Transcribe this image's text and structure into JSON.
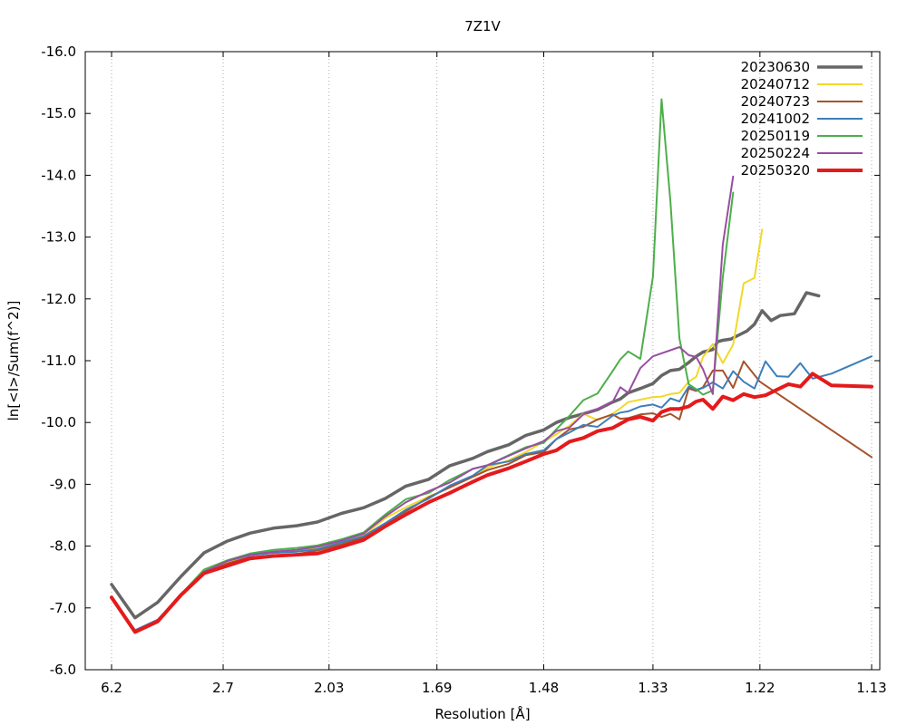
{
  "chart_data": {
    "type": "line",
    "title": "7Z1V",
    "xlabel": "Resolution [Å]",
    "ylabel": "ln[<I>/Sum(f^2)]",
    "x_scale": "inverse-square (1/d^2)",
    "xlim": [
      6.2,
      1.13
    ],
    "ylim": [
      -16.0,
      -6.0
    ],
    "x_ticks": [
      "6.2",
      "2.7",
      "2.03",
      "1.69",
      "1.48",
      "1.33",
      "1.22",
      "1.13"
    ],
    "y_ticks": [
      "-6.0",
      "-7.0",
      "-8.0",
      "-9.0",
      "-10.0",
      "-11.0",
      "-12.0",
      "-13.0",
      "-14.0",
      "-15.0",
      "-16.0"
    ],
    "grid": true,
    "legend": "top-right",
    "series": [
      {
        "name": "20230630",
        "color": "#666666",
        "width": 3.5,
        "x": [
          6.2,
          4.5,
          3.73,
          3.24,
          2.91,
          2.66,
          2.47,
          2.31,
          2.18,
          2.08,
          1.98,
          1.9,
          1.83,
          1.77,
          1.71,
          1.66,
          1.61,
          1.58,
          1.54,
          1.51,
          1.48,
          1.46,
          1.44,
          1.42,
          1.4,
          1.38,
          1.37,
          1.36,
          1.345,
          1.33,
          1.32,
          1.31,
          1.3,
          1.29,
          1.282,
          1.275,
          1.265,
          1.26,
          1.255,
          1.247,
          1.24,
          1.232,
          1.225,
          1.218,
          1.21,
          1.202,
          1.19,
          1.18,
          1.17
        ],
        "y": [
          -7.38,
          -6.84,
          -7.09,
          -7.51,
          -7.89,
          -8.08,
          -8.21,
          -8.29,
          -8.33,
          -8.39,
          -8.53,
          -8.62,
          -8.77,
          -8.97,
          -9.08,
          -9.3,
          -9.42,
          -9.53,
          -9.64,
          -9.79,
          -9.88,
          -10.0,
          -10.08,
          -10.14,
          -10.21,
          -10.33,
          -10.38,
          -10.48,
          -10.55,
          -10.63,
          -10.76,
          -10.84,
          -10.86,
          -10.97,
          -11.07,
          -11.14,
          -11.18,
          -11.31,
          -11.33,
          -11.35,
          -11.41,
          -11.48,
          -11.59,
          -11.81,
          -11.65,
          -11.73,
          -11.76,
          -12.1,
          -12.05
        ]
      },
      {
        "name": "20240712",
        "color": "#f2d82a",
        "width": 2,
        "x": [
          6.2,
          4.5,
          3.73,
          3.24,
          2.91,
          2.66,
          2.47,
          2.31,
          2.18,
          2.08,
          1.98,
          1.9,
          1.83,
          1.77,
          1.71,
          1.66,
          1.61,
          1.58,
          1.54,
          1.51,
          1.48,
          1.46,
          1.44,
          1.42,
          1.4,
          1.38,
          1.37,
          1.36,
          1.345,
          1.33,
          1.32,
          1.31,
          1.3,
          1.29,
          1.282,
          1.275,
          1.265,
          1.255,
          1.245,
          1.235,
          1.225,
          1.218
        ],
        "y": [
          -7.17,
          -6.62,
          -6.81,
          -7.2,
          -7.58,
          -7.73,
          -7.86,
          -7.9,
          -7.91,
          -7.97,
          -8.07,
          -8.17,
          -8.45,
          -8.63,
          -8.8,
          -8.95,
          -9.13,
          -9.27,
          -9.39,
          -9.52,
          -9.69,
          -9.81,
          -9.95,
          -10.14,
          -10.04,
          -10.14,
          -10.23,
          -10.33,
          -10.37,
          -10.41,
          -10.42,
          -10.46,
          -10.48,
          -10.66,
          -10.74,
          -11.06,
          -11.27,
          -10.96,
          -11.26,
          -12.25,
          -12.34,
          -13.12
        ]
      },
      {
        "name": "20240723",
        "color": "#a6522b",
        "width": 2,
        "x": [
          6.2,
          4.5,
          3.73,
          3.24,
          2.91,
          2.66,
          2.47,
          2.31,
          2.18,
          2.08,
          1.98,
          1.9,
          1.83,
          1.77,
          1.71,
          1.66,
          1.61,
          1.58,
          1.54,
          1.51,
          1.48,
          1.46,
          1.44,
          1.42,
          1.4,
          1.38,
          1.37,
          1.36,
          1.345,
          1.33,
          1.32,
          1.31,
          1.3,
          1.29,
          1.282,
          1.275,
          1.265,
          1.255,
          1.245,
          1.235,
          1.22,
          1.13
        ],
        "y": [
          -7.18,
          -6.61,
          -6.79,
          -7.19,
          -7.56,
          -7.72,
          -7.82,
          -7.85,
          -7.87,
          -7.93,
          -8.03,
          -8.14,
          -8.36,
          -8.56,
          -8.79,
          -8.95,
          -9.12,
          -9.23,
          -9.33,
          -9.47,
          -9.52,
          -9.73,
          -9.89,
          -9.93,
          -10.05,
          -10.13,
          -10.06,
          -10.07,
          -10.13,
          -10.15,
          -10.09,
          -10.14,
          -10.05,
          -10.55,
          -10.51,
          -10.57,
          -10.84,
          -10.84,
          -10.56,
          -10.99,
          -10.66,
          -9.44
        ]
      },
      {
        "name": "20241002",
        "color": "#3c7fba",
        "width": 2,
        "x": [
          6.2,
          4.5,
          3.73,
          3.24,
          2.91,
          2.66,
          2.47,
          2.31,
          2.18,
          2.08,
          1.98,
          1.9,
          1.83,
          1.77,
          1.71,
          1.66,
          1.61,
          1.58,
          1.54,
          1.51,
          1.48,
          1.46,
          1.44,
          1.42,
          1.4,
          1.38,
          1.37,
          1.36,
          1.345,
          1.33,
          1.32,
          1.31,
          1.3,
          1.29,
          1.282,
          1.275,
          1.265,
          1.255,
          1.245,
          1.235,
          1.225,
          1.215,
          1.205,
          1.195,
          1.185,
          1.175,
          1.16,
          1.13
        ],
        "y": [
          -7.18,
          -6.64,
          -6.81,
          -7.21,
          -7.59,
          -7.76,
          -7.85,
          -7.89,
          -7.91,
          -7.95,
          -8.06,
          -8.16,
          -8.37,
          -8.59,
          -8.77,
          -8.98,
          -9.14,
          -9.31,
          -9.37,
          -9.49,
          -9.55,
          -9.73,
          -9.84,
          -9.96,
          -9.93,
          -10.11,
          -10.16,
          -10.18,
          -10.26,
          -10.29,
          -10.24,
          -10.39,
          -10.34,
          -10.58,
          -10.53,
          -10.56,
          -10.65,
          -10.55,
          -10.83,
          -10.66,
          -10.55,
          -10.99,
          -10.75,
          -10.74,
          -10.96,
          -10.71,
          -10.79,
          -11.07
        ]
      },
      {
        "name": "20250119",
        "color": "#4daf4a",
        "width": 2,
        "x": [
          6.2,
          4.5,
          3.73,
          3.24,
          2.91,
          2.66,
          2.47,
          2.31,
          2.18,
          2.08,
          1.98,
          1.9,
          1.83,
          1.77,
          1.71,
          1.66,
          1.61,
          1.58,
          1.54,
          1.51,
          1.48,
          1.46,
          1.44,
          1.42,
          1.4,
          1.38,
          1.37,
          1.36,
          1.345,
          1.33,
          1.32,
          1.31,
          1.3,
          1.29,
          1.282,
          1.275,
          1.265,
          1.255,
          1.245
        ],
        "y": [
          -7.18,
          -6.61,
          -6.8,
          -7.22,
          -7.62,
          -7.77,
          -7.88,
          -7.94,
          -7.97,
          -8.01,
          -8.11,
          -8.22,
          -8.51,
          -8.76,
          -8.86,
          -9.07,
          -9.25,
          -9.31,
          -9.47,
          -9.6,
          -9.67,
          -9.89,
          -10.11,
          -10.36,
          -10.47,
          -10.83,
          -11.02,
          -11.15,
          -11.03,
          -12.36,
          -15.23,
          -13.57,
          -11.36,
          -10.62,
          -10.54,
          -10.45,
          -10.52,
          -12.35,
          -13.72
        ]
      },
      {
        "name": "20250224",
        "color": "#984ea3",
        "width": 2,
        "x": [
          6.2,
          4.5,
          3.73,
          3.24,
          2.91,
          2.66,
          2.47,
          2.31,
          2.18,
          2.08,
          1.98,
          1.9,
          1.83,
          1.77,
          1.71,
          1.66,
          1.61,
          1.58,
          1.54,
          1.51,
          1.48,
          1.46,
          1.44,
          1.42,
          1.4,
          1.38,
          1.37,
          1.36,
          1.345,
          1.33,
          1.3,
          1.29,
          1.282,
          1.275,
          1.265,
          1.255,
          1.245
        ],
        "y": [
          -7.17,
          -6.62,
          -6.8,
          -7.2,
          -7.58,
          -7.76,
          -7.86,
          -7.91,
          -7.94,
          -7.99,
          -8.09,
          -8.2,
          -8.48,
          -8.71,
          -8.89,
          -9.03,
          -9.25,
          -9.31,
          -9.46,
          -9.58,
          -9.7,
          -9.86,
          -9.92,
          -10.13,
          -10.22,
          -10.33,
          -10.57,
          -10.48,
          -10.88,
          -11.07,
          -11.22,
          -11.09,
          -11.06,
          -10.86,
          -10.46,
          -12.88,
          -13.98
        ]
      },
      {
        "name": "20250320",
        "color": "#e41a1c",
        "width": 4,
        "x": [
          6.2,
          4.5,
          3.73,
          3.24,
          2.91,
          2.66,
          2.47,
          2.31,
          2.18,
          2.08,
          1.98,
          1.9,
          1.83,
          1.77,
          1.71,
          1.66,
          1.61,
          1.58,
          1.54,
          1.51,
          1.48,
          1.46,
          1.44,
          1.42,
          1.4,
          1.38,
          1.37,
          1.36,
          1.345,
          1.33,
          1.32,
          1.31,
          1.3,
          1.29,
          1.282,
          1.275,
          1.265,
          1.255,
          1.245,
          1.235,
          1.225,
          1.215,
          1.205,
          1.195,
          1.185,
          1.175,
          1.16,
          1.13
        ],
        "y": [
          -7.17,
          -6.61,
          -6.78,
          -7.21,
          -7.56,
          -7.68,
          -7.8,
          -7.84,
          -7.86,
          -7.88,
          -7.99,
          -8.1,
          -8.32,
          -8.51,
          -8.71,
          -8.86,
          -9.04,
          -9.15,
          -9.26,
          -9.37,
          -9.49,
          -9.55,
          -9.69,
          -9.75,
          -9.86,
          -9.91,
          -9.98,
          -10.05,
          -10.09,
          -10.03,
          -10.17,
          -10.22,
          -10.22,
          -10.26,
          -10.34,
          -10.37,
          -10.22,
          -10.42,
          -10.36,
          -10.46,
          -10.41,
          -10.44,
          -10.53,
          -10.62,
          -10.58,
          -10.79,
          -10.6,
          -10.58
        ]
      }
    ]
  }
}
